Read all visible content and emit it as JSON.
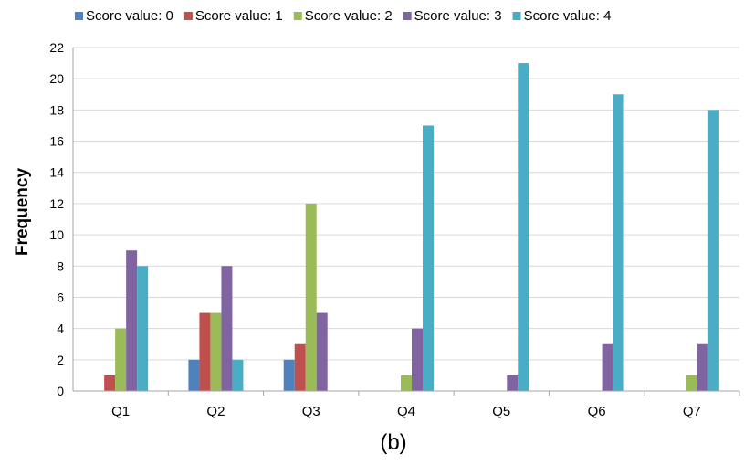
{
  "chart_data": {
    "type": "bar",
    "title": "",
    "caption": "(b)",
    "xlabel": "",
    "ylabel": "Frequency",
    "categories": [
      "Q1",
      "Q2",
      "Q3",
      "Q4",
      "Q5",
      "Q6",
      "Q7"
    ],
    "ylim": [
      0,
      22
    ],
    "yticks": [
      0,
      2,
      4,
      6,
      8,
      10,
      12,
      14,
      16,
      18,
      20,
      22
    ],
    "grid": true,
    "legend_position": "top",
    "series": [
      {
        "name": "Score value: 0",
        "color": "#4f81bd",
        "values": [
          0,
          2,
          2,
          0,
          0,
          0,
          0
        ]
      },
      {
        "name": "Score value: 1",
        "color": "#c0504d",
        "values": [
          1,
          5,
          3,
          0,
          0,
          0,
          0
        ]
      },
      {
        "name": "Score value: 2",
        "color": "#9bbb59",
        "values": [
          4,
          5,
          12,
          1,
          0,
          0,
          1
        ]
      },
      {
        "name": "Score value: 3",
        "color": "#8064a2",
        "values": [
          9,
          8,
          5,
          4,
          1,
          3,
          3
        ]
      },
      {
        "name": "Score value: 4",
        "color": "#4bacc6",
        "values": [
          8,
          2,
          0,
          17,
          21,
          19,
          18
        ]
      }
    ]
  }
}
